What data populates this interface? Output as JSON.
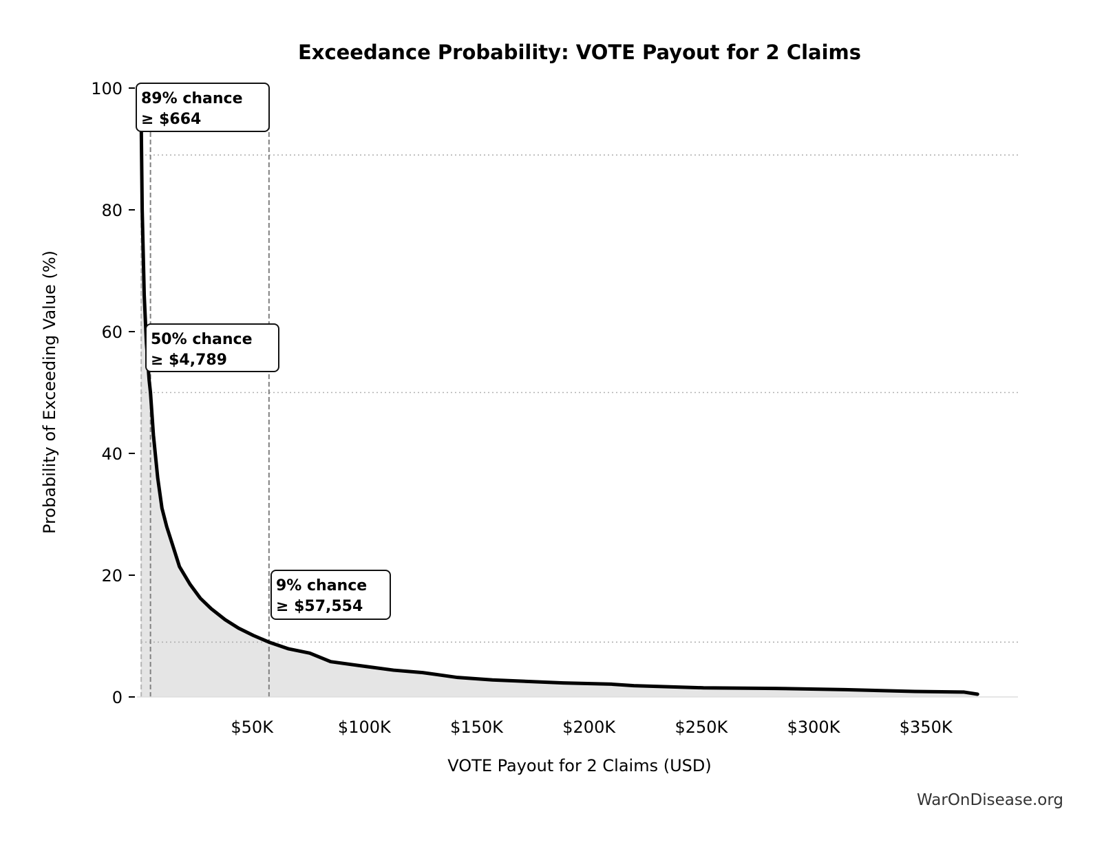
{
  "chart_data": {
    "type": "area",
    "title": "Exceedance Probability: VOTE Payout for 2 Claims",
    "xlabel": "VOTE Payout for 2 Claims (USD)",
    "ylabel": "Probability of Exceeding Value (%)",
    "xlim": [
      0,
      391000
    ],
    "ylim": [
      0,
      100
    ],
    "x_ticks": [
      50000,
      100000,
      150000,
      200000,
      250000,
      300000,
      350000
    ],
    "x_tick_labels": [
      "$50K",
      "$100K",
      "$150K",
      "$200K",
      "$250K",
      "$300K",
      "$350K"
    ],
    "y_ticks": [
      0,
      20,
      40,
      60,
      80,
      100
    ],
    "y_tick_labels": [
      "0",
      "20",
      "40",
      "60",
      "80",
      "100"
    ],
    "grid": false,
    "colors": {
      "line": "#000000",
      "fill": "#e5e5e5",
      "reference": "#808080",
      "threshold": "#b0b0b0"
    },
    "series": [
      {
        "x": [
          500,
          1100,
          2000,
          3000,
          4200,
          4789,
          6100,
          8000,
          9900,
          12000,
          14600,
          17700,
          22400,
          27000,
          31800,
          38000,
          44000,
          50600,
          57554,
          66300,
          75700,
          85000,
          100800,
          113000,
          126000,
          141500,
          157000,
          188600,
          210000,
          220000,
          251000,
          283000,
          314000,
          345000,
          367000,
          373000
        ],
        "y": [
          100,
          80,
          66,
          58,
          52,
          50,
          43,
          36,
          31,
          28,
          25,
          21.4,
          18.5,
          16.2,
          14.5,
          12.7,
          11.3,
          10.1,
          9,
          7.9,
          7.2,
          5.8,
          5,
          4.4,
          4,
          3.2,
          2.8,
          2.3,
          2.1,
          1.85,
          1.5,
          1.4,
          1.2,
          0.9,
          0.8,
          0.45
        ]
      }
    ],
    "annotations": [
      {
        "probability": 89,
        "value": 664,
        "line1": "89% chance",
        "line2": "≥ $664"
      },
      {
        "probability": 50,
        "value": 4789,
        "line1": "50% chance",
        "line2": "≥ $4,789"
      },
      {
        "probability": 9,
        "value": 57554,
        "line1": "9% chance",
        "line2": "≥ $57,554"
      }
    ]
  },
  "watermark": "WarOnDisease.org"
}
